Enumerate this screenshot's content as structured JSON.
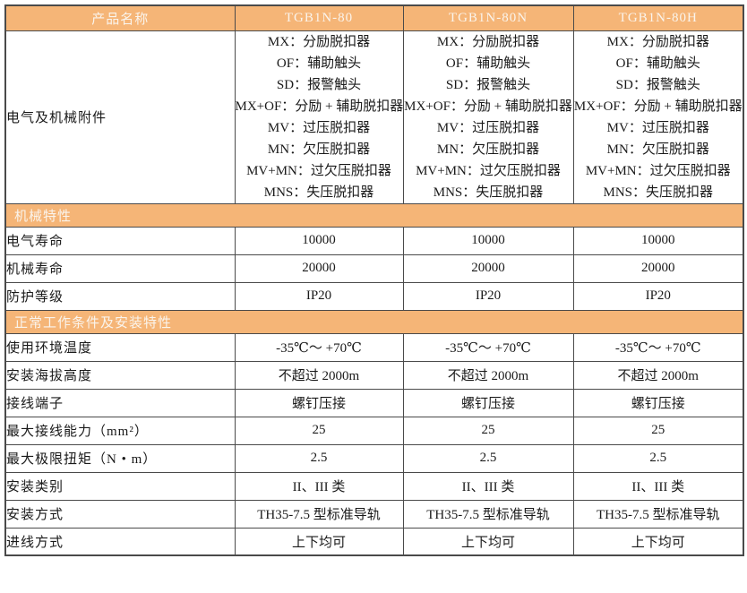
{
  "colors": {
    "band_bg": "#f5b577",
    "band_text": "#faf4ec",
    "border": "#4a4a4a",
    "body_text": "#1a1a1a"
  },
  "table": {
    "header": {
      "label": "产品名称",
      "products": [
        "TGB1N-80",
        "TGB1N-80N",
        "TGB1N-80H"
      ]
    },
    "accessories": {
      "label": "电气及机械附件",
      "lines": [
        "MX：分励脱扣器",
        "OF：辅助触头",
        "SD：报警触头",
        "MX+OF：分励 + 辅助脱扣器",
        "MV：过压脱扣器",
        "MN：欠压脱扣器",
        "MV+MN：过欠压脱扣器",
        "MNS：失压脱扣器"
      ]
    },
    "sections": [
      {
        "title": "机械特性",
        "rows": [
          {
            "label": "电气寿命",
            "values": [
              "10000",
              "10000",
              "10000"
            ]
          },
          {
            "label": "机械寿命",
            "values": [
              "20000",
              "20000",
              "20000"
            ]
          },
          {
            "label": "防护等级",
            "values": [
              "IP20",
              "IP20",
              "IP20"
            ]
          }
        ]
      },
      {
        "title": "正常工作条件及安装特性",
        "rows": [
          {
            "label": "使用环境温度",
            "values": [
              "-35℃～ +70℃",
              "-35℃～ +70℃",
              "-35℃～ +70℃"
            ]
          },
          {
            "label": "安装海拔高度",
            "values": [
              "不超过 2000m",
              "不超过 2000m",
              "不超过 2000m"
            ]
          },
          {
            "label": "接线端子",
            "values": [
              "螺钉压接",
              "螺钉压接",
              "螺钉压接"
            ]
          },
          {
            "label": "最大接线能力（mm²）",
            "values": [
              "25",
              "25",
              "25"
            ]
          },
          {
            "label": "最大极限扭矩（N • m）",
            "values": [
              "2.5",
              "2.5",
              "2.5"
            ]
          },
          {
            "label": "安装类别",
            "values": [
              "II、III 类",
              "II、III 类",
              "II、III 类"
            ]
          },
          {
            "label": "安装方式",
            "values": [
              "TH35-7.5 型标准导轨",
              "TH35-7.5 型标准导轨",
              "TH35-7.5 型标准导轨"
            ]
          },
          {
            "label": "进线方式",
            "values": [
              "上下均可",
              "上下均可",
              "上下均可"
            ]
          }
        ]
      }
    ]
  }
}
